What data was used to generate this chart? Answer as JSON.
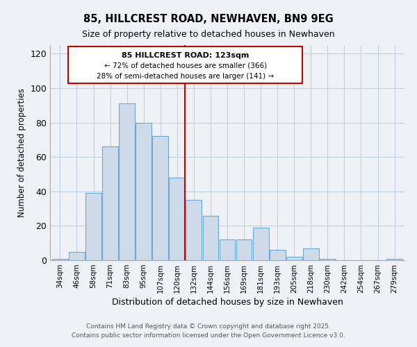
{
  "title": "85, HILLCREST ROAD, NEWHAVEN, BN9 9EG",
  "subtitle": "Size of property relative to detached houses in Newhaven",
  "xlabel": "Distribution of detached houses by size in Newhaven",
  "ylabel": "Number of detached properties",
  "bar_labels": [
    "34sqm",
    "46sqm",
    "58sqm",
    "71sqm",
    "83sqm",
    "95sqm",
    "107sqm",
    "120sqm",
    "132sqm",
    "144sqm",
    "156sqm",
    "169sqm",
    "181sqm",
    "193sqm",
    "205sqm",
    "218sqm",
    "230sqm",
    "242sqm",
    "254sqm",
    "267sqm",
    "279sqm"
  ],
  "bar_values": [
    1,
    5,
    39,
    66,
    91,
    80,
    72,
    48,
    35,
    26,
    12,
    12,
    19,
    6,
    2,
    7,
    1,
    0,
    0,
    0,
    1
  ],
  "bar_color": "#ccdaea",
  "bar_edge_color": "#6aaad4",
  "vline_x_index": 7,
  "vline_color": "#cc0000",
  "ylim": [
    0,
    125
  ],
  "yticks": [
    0,
    20,
    40,
    60,
    80,
    100,
    120
  ],
  "annotation_title": "85 HILLCREST ROAD: 123sqm",
  "annotation_line1": "← 72% of detached houses are smaller (366)",
  "annotation_line2": "28% of semi-detached houses are larger (141) →",
  "background_color": "#eef2f7",
  "plot_background": "#eef2f7",
  "grid_color": "#bbcfe0",
  "footer_line1": "Contains HM Land Registry data © Crown copyright and database right 2025.",
  "footer_line2": "Contains public sector information licensed under the Open Government Licence v3.0."
}
